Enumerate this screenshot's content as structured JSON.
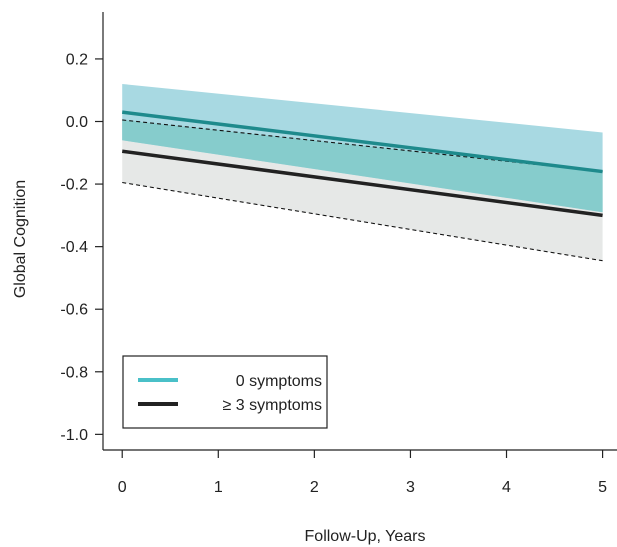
{
  "chart_data": {
    "type": "line",
    "title": "",
    "xlabel": "Follow-Up, Years",
    "ylabel": "Global Cognition",
    "x": [
      0,
      5
    ],
    "xticks": [
      0,
      1,
      2,
      3,
      4,
      5
    ],
    "yticks": [
      0.2,
      0.0,
      -0.2,
      -0.4,
      -0.6,
      -0.8,
      -1.0
    ],
    "ytick_labels": [
      "0.2",
      "0.0",
      "-0.2",
      "-0.4",
      "-0.6",
      "-0.8",
      "-1.0"
    ],
    "xlim": [
      -0.2,
      5.15
    ],
    "ylim": [
      -1.05,
      0.35
    ],
    "grid": false,
    "legend_position": "bottom-left",
    "series": [
      {
        "name": "0 symptoms",
        "legend_label": "0 symptoms",
        "color": "#1e8a8c",
        "legend_color": "#4ac0c8",
        "band_color": "#a8d9e2",
        "values": [
          0.03,
          -0.16
        ],
        "ci_lower": [
          -0.06,
          -0.29
        ],
        "ci_upper": [
          0.12,
          -0.035
        ]
      },
      {
        "name": ">= 3 symptoms",
        "legend_label": "≥ 3 symptoms",
        "color": "#222222",
        "legend_color": "#222222",
        "band_color": "#e6e8e7",
        "values": [
          -0.095,
          -0.3
        ],
        "ci_lower": [
          -0.195,
          -0.445
        ],
        "ci_upper": [
          0.005,
          -0.16
        ]
      }
    ],
    "overlap_color": "#86cccc"
  }
}
